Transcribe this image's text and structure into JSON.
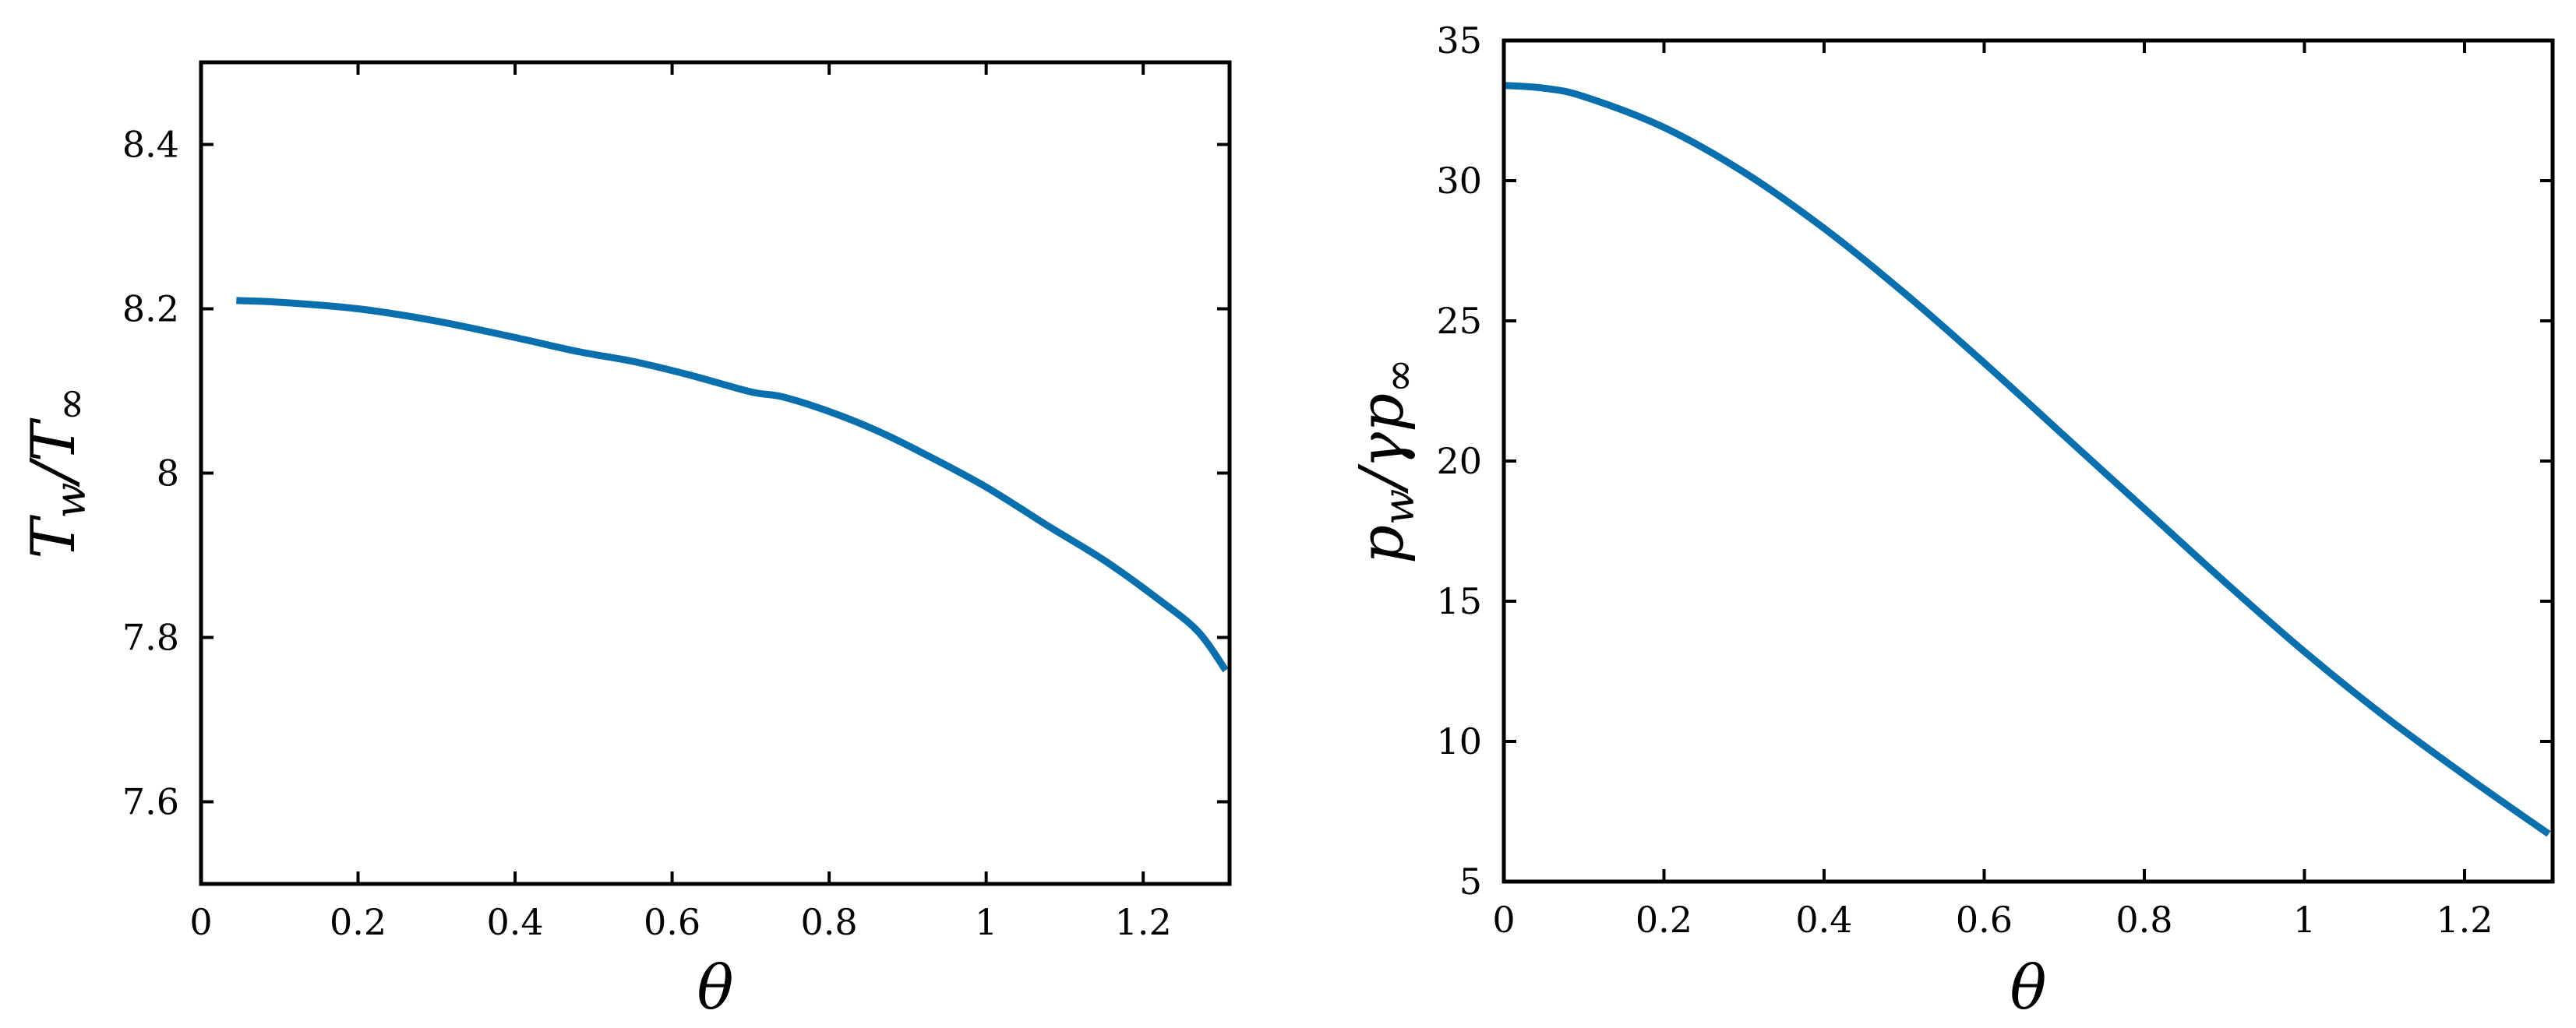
{
  "chart_data": [
    {
      "type": "line",
      "xlabel": "θ",
      "ylabel": "Tw/T∞",
      "ylabel_main": "T",
      "ylabel_sub": "w",
      "ylabel_rest": "/T",
      "ylabel_sub2": "∞",
      "xlim": [
        0,
        1.31
      ],
      "ylim": [
        7.5,
        8.5
      ],
      "xticks": [
        0,
        0.2,
        0.4,
        0.6,
        0.8,
        1,
        1.2
      ],
      "xtick_labels": [
        "0",
        "0.2",
        "0.4",
        "0.6",
        "0.8",
        "1",
        "1.2"
      ],
      "yticks": [
        7.6,
        7.8,
        8,
        8.2,
        8.4
      ],
      "ytick_labels": [
        "7.6",
        "7.8",
        "8",
        "8.2",
        "8.4"
      ],
      "grid": false,
      "color": "#0a6fad",
      "series": [
        {
          "x": [
            0.045,
            0.1,
            0.2,
            0.3,
            0.4,
            0.48,
            0.55,
            0.62,
            0.7,
            0.74,
            0.8,
            0.86,
            0.92,
            1.0,
            1.08,
            1.15,
            1.22,
            1.27,
            1.305
          ],
          "y": [
            8.21,
            8.208,
            8.2,
            8.185,
            8.165,
            8.148,
            8.136,
            8.12,
            8.099,
            8.093,
            8.075,
            8.052,
            8.024,
            7.983,
            7.935,
            7.894,
            7.846,
            7.807,
            7.76
          ]
        }
      ]
    },
    {
      "type": "line",
      "xlabel": "θ",
      "ylabel": "pw/γp∞",
      "ylabel_main": "p",
      "ylabel_sub": "w",
      "ylabel_rest": "/γp",
      "ylabel_sub2": "∞",
      "xlim": [
        0,
        1.31
      ],
      "ylim": [
        5,
        35
      ],
      "xticks": [
        0,
        0.2,
        0.4,
        0.6,
        0.8,
        1,
        1.2
      ],
      "xtick_labels": [
        "0",
        "0.2",
        "0.4",
        "0.6",
        "0.8",
        "1",
        "1.2"
      ],
      "yticks": [
        5,
        10,
        15,
        20,
        25,
        30,
        35
      ],
      "ytick_labels": [
        "5",
        "10",
        "15",
        "20",
        "25",
        "30",
        "35"
      ],
      "grid": false,
      "color": "#0a6fad",
      "series": [
        {
          "x": [
            0,
            0.05,
            0.1,
            0.2,
            0.3,
            0.4,
            0.5,
            0.6,
            0.7,
            0.8,
            0.9,
            1.0,
            1.1,
            1.2,
            1.305
          ],
          "y": [
            33.4,
            33.3,
            33.0,
            31.9,
            30.3,
            28.3,
            26.0,
            23.5,
            20.9,
            18.3,
            15.7,
            13.2,
            10.9,
            8.8,
            6.7
          ]
        }
      ]
    }
  ]
}
